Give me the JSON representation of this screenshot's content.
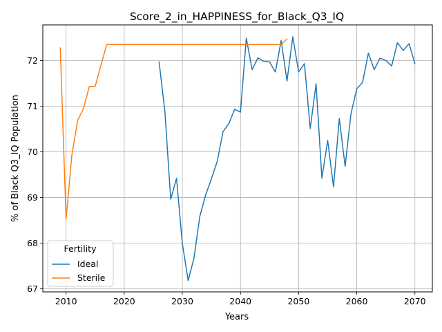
{
  "chart_data": {
    "type": "line",
    "title": "Score_2_in_HAPPINESS_for_Black_Q3_IQ",
    "xlabel": "Years",
    "ylabel": "% of Black Q3_IQ Population",
    "xlim": [
      2006,
      2073
    ],
    "ylim": [
      66.93,
      72.78
    ],
    "xticks": [
      2010,
      2020,
      2030,
      2040,
      2050,
      2060,
      2070
    ],
    "yticks": [
      67,
      68,
      69,
      70,
      71,
      72
    ],
    "grid": true,
    "legend": {
      "title": "Fertility",
      "placement": "lower-left"
    },
    "series": [
      {
        "name": "Ideal",
        "color": "#1f77b4",
        "x": [
          2026,
          2027,
          2028,
          2029,
          2030,
          2031,
          2032,
          2033,
          2034,
          2035,
          2036,
          2037,
          2038,
          2039,
          2040,
          2041,
          2042,
          2043,
          2044,
          2045,
          2046,
          2047,
          2048,
          2049,
          2050,
          2051,
          2052,
          2053,
          2054,
          2055,
          2056,
          2057,
          2058,
          2059,
          2060,
          2061,
          2062,
          2063,
          2064,
          2065,
          2066,
          2067,
          2068,
          2069,
          2070
        ],
        "y": [
          71.97,
          70.88,
          68.96,
          69.42,
          67.99,
          67.18,
          67.67,
          68.58,
          69.05,
          69.41,
          69.79,
          70.44,
          70.62,
          70.93,
          70.87,
          72.49,
          71.8,
          72.06,
          71.98,
          71.97,
          71.75,
          72.44,
          71.55,
          72.52,
          71.75,
          71.93,
          70.51,
          71.49,
          69.42,
          70.25,
          69.23,
          70.73,
          69.68,
          70.83,
          71.38,
          71.52,
          72.16,
          71.8,
          72.05,
          72.0,
          71.88,
          72.39,
          72.22,
          72.37,
          71.93
        ]
      },
      {
        "name": "Sterile",
        "color": "#ff7f0e",
        "x": [
          2009,
          2010,
          2011,
          2012,
          2013,
          2014,
          2015,
          2016,
          2017,
          2018,
          2019,
          2020,
          2021,
          2022,
          2023,
          2024,
          2025,
          2026,
          2027,
          2028,
          2029,
          2030,
          2031,
          2032,
          2033,
          2034,
          2035,
          2036,
          2037,
          2038,
          2039,
          2040,
          2041,
          2042,
          2043,
          2044,
          2045,
          2046,
          2047,
          2048
        ],
        "y": [
          72.28,
          68.52,
          69.93,
          70.69,
          70.95,
          71.43,
          71.43,
          71.9,
          72.35,
          72.35,
          72.35,
          72.35,
          72.35,
          72.35,
          72.35,
          72.35,
          72.35,
          72.35,
          72.35,
          72.35,
          72.35,
          72.35,
          72.35,
          72.35,
          72.35,
          72.35,
          72.35,
          72.35,
          72.35,
          72.35,
          72.35,
          72.35,
          72.35,
          72.35,
          72.35,
          72.35,
          72.35,
          72.35,
          72.35,
          72.47
        ]
      }
    ]
  }
}
